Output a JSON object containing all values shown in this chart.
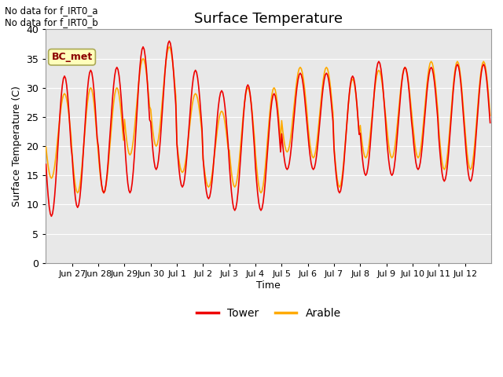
{
  "title": "Surface Temperature",
  "xlabel": "Time",
  "ylabel": "Surface Temperature (C)",
  "ylim": [
    0,
    40
  ],
  "yticks": [
    0,
    5,
    10,
    15,
    20,
    25,
    30,
    35,
    40
  ],
  "annotation_lines": [
    "No data for f_IRT0_a",
    "No data for f_IRT0_b"
  ],
  "bc_met_label": "BC_met",
  "bc_met_box_color": "#ffffbb",
  "bc_met_text_color": "#8b0000",
  "tower_color": "#ee0000",
  "arable_color": "#ffaa00",
  "background_color": "#e8e8e8",
  "legend_labels": [
    "Tower",
    "Arable"
  ],
  "x_tick_labels": [
    "Jun 27",
    "Jun 28",
    "Jun 29",
    "Jun 30",
    "Jul 1",
    "Jul 2",
    "Jul 3",
    "Jul 4",
    "Jul 5",
    "Jul 6",
    "Jul 7",
    "Jul 8",
    "Jul 9",
    "Jul 10",
    "Jul 11",
    "Jul 12"
  ],
  "x_tick_positions_hours": [
    24,
    48,
    72,
    96,
    120,
    144,
    168,
    192,
    216,
    240,
    264,
    288,
    312,
    336,
    360,
    384
  ],
  "total_hours": 408,
  "tower_daily_min": [
    8.0,
    9.5,
    12.0,
    12.0,
    16.0,
    13.0,
    11.0,
    9.0,
    9.0,
    16.0,
    16.0,
    12.0,
    15.0,
    15.0,
    16.0,
    14.0
  ],
  "tower_daily_max": [
    32.0,
    33.0,
    33.5,
    37.0,
    38.0,
    33.0,
    29.5,
    30.5,
    29.0,
    32.5,
    32.5,
    32.0,
    34.5,
    33.5,
    33.5,
    34.0
  ],
  "arable_daily_min": [
    14.5,
    12.0,
    12.0,
    18.5,
    20.0,
    15.5,
    13.0,
    13.0,
    12.0,
    19.0,
    18.0,
    13.0,
    18.0,
    18.0,
    18.0,
    16.0
  ],
  "arable_daily_max": [
    29.0,
    30.0,
    30.0,
    35.0,
    37.0,
    29.0,
    26.0,
    30.0,
    30.0,
    33.5,
    33.5,
    31.5,
    33.0,
    33.5,
    34.5,
    34.5
  ],
  "peak_hour": 13,
  "min_hour": 5,
  "line_width": 1.2,
  "grid_color": "#cccccc",
  "figsize": [
    6.4,
    4.8
  ],
  "dpi": 100
}
